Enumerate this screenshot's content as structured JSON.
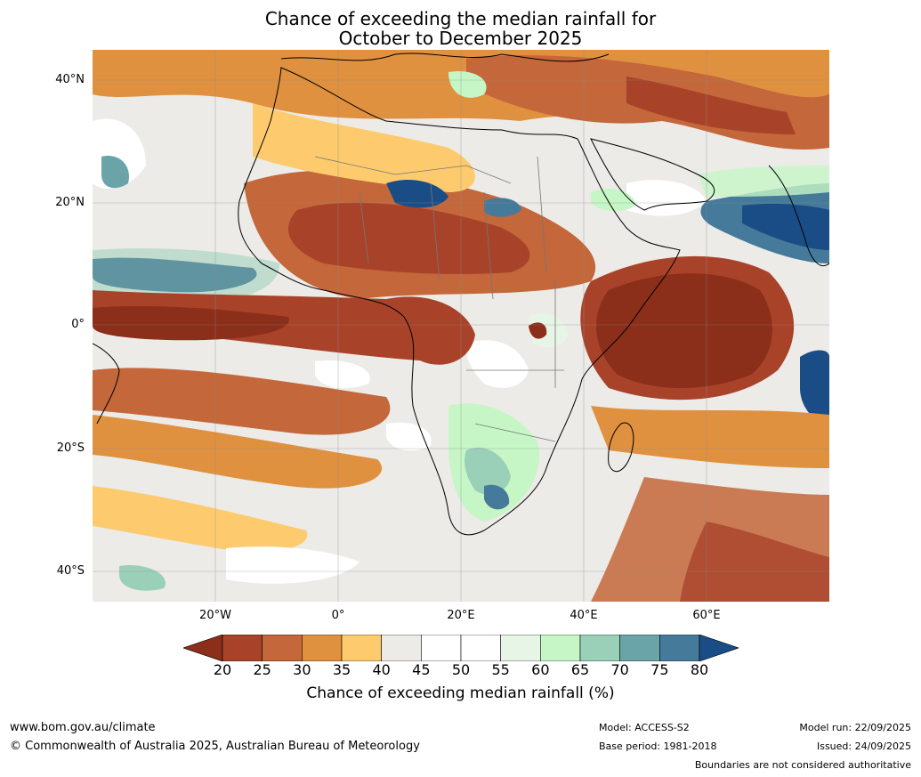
{
  "title": {
    "line1": "Chance of exceeding the median rainfall for",
    "line2": "October to December 2025"
  },
  "axes": {
    "lat_labels": [
      "40°N",
      "20°N",
      "0°",
      "20°S",
      "40°S"
    ],
    "lon_labels": [
      "20°W",
      "0°",
      "20°E",
      "40°E",
      "60°E"
    ]
  },
  "colorbar": {
    "ticks": [
      "20",
      "25",
      "30",
      "35",
      "40",
      "45",
      "50",
      "55",
      "60",
      "65",
      "70",
      "75",
      "80"
    ],
    "colors": [
      "#8b2e1a",
      "#a8432a",
      "#c4673a",
      "#e0913f",
      "#fdcb6e",
      "#ecebe8",
      "#ffffff",
      "#ffffff",
      "#e6f5e6",
      "#c6f6c6",
      "#9acfb8",
      "#6aa4a8",
      "#457a9a",
      "#1a4d86"
    ],
    "label": "Chance of exceeding median rainfall (%)"
  },
  "footer": {
    "url": "www.bom.gov.au/climate",
    "copyright": "© Commonwealth of Australia 2025, Australian Bureau of Meteorology",
    "model": "Model: ACCESS-S2",
    "base_period": "Base period: 1981-2018",
    "model_run": "Model run: 22/09/2025",
    "issued": "Issued: 24/09/2025",
    "disclaimer": "Boundaries are not considered authoritative"
  }
}
